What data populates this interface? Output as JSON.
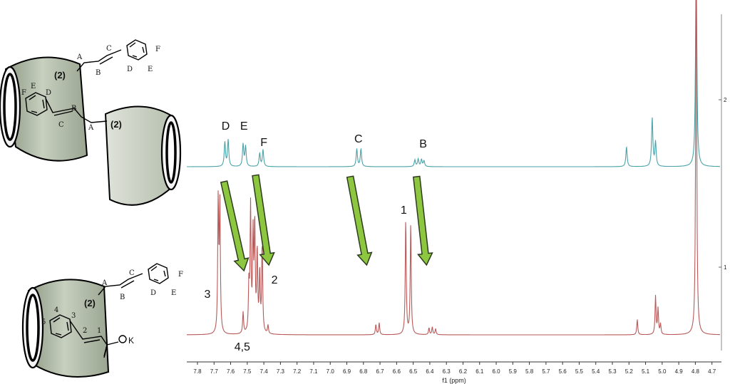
{
  "chart_data": {
    "type": "line",
    "x_axis": {
      "label": "f1 (ppm)",
      "ticks": [
        "7.8",
        "7.7",
        "7.6",
        "7.5",
        "7.4",
        "7.3",
        "7.2",
        "7.1",
        "7.0",
        "6.9",
        "6.8",
        "6.7",
        "6.6",
        "6.5",
        "6.4",
        "6.3",
        "6.2",
        "6.1",
        "6.0",
        "5.9",
        "5.8",
        "5.7",
        "5.6",
        "5.5",
        "5.4",
        "5.3",
        "5.2",
        "5.1",
        "5.0",
        "4.9",
        "4.8",
        "4.7"
      ],
      "range": [
        7.83,
        4.66
      ],
      "reversed": true
    },
    "y_axis_right": {
      "ticks": [
        "2",
        "1"
      ]
    },
    "series": [
      {
        "color": "#4aa3a8",
        "peak_labels": [
          {
            "text": "D",
            "ppm": 7.63
          },
          {
            "text": "E",
            "ppm": 7.52
          },
          {
            "text": "F",
            "ppm": 7.4
          },
          {
            "text": "C",
            "ppm": 6.83
          },
          {
            "text": "B",
            "ppm": 6.44
          }
        ],
        "peaks": [
          {
            "ppm": 7.635,
            "h": 0.55
          },
          {
            "ppm": 7.615,
            "h": 0.6
          },
          {
            "ppm": 7.525,
            "h": 0.5
          },
          {
            "ppm": 7.51,
            "h": 0.45
          },
          {
            "ppm": 7.425,
            "h": 0.3
          },
          {
            "ppm": 7.405,
            "h": 0.38
          },
          {
            "ppm": 6.84,
            "h": 0.4
          },
          {
            "ppm": 6.815,
            "h": 0.4
          },
          {
            "ppm": 6.49,
            "h": 0.15
          },
          {
            "ppm": 6.47,
            "h": 0.17
          },
          {
            "ppm": 6.45,
            "h": 0.16
          },
          {
            "ppm": 6.435,
            "h": 0.13
          },
          {
            "ppm": 5.215,
            "h": 0.45
          },
          {
            "ppm": 5.06,
            "h": 1.1
          },
          {
            "ppm": 5.04,
            "h": 0.55
          },
          {
            "ppm": 4.795,
            "h": 5.0
          }
        ]
      },
      {
        "color": "#b85a5a",
        "peak_labels": [
          {
            "text": "3",
            "ppm": 7.68
          },
          {
            "text": "4,5",
            "ppm": 7.53
          },
          {
            "text": "2",
            "ppm": 7.37
          },
          {
            "text": "1",
            "ppm": 6.54
          }
        ],
        "peaks": [
          {
            "ppm": 7.675,
            "h": 1.55
          },
          {
            "ppm": 7.665,
            "h": 1.5
          },
          {
            "ppm": 7.525,
            "h": 0.25
          },
          {
            "ppm": 7.49,
            "h": 0.55
          },
          {
            "ppm": 7.48,
            "h": 1.45
          },
          {
            "ppm": 7.465,
            "h": 1.1
          },
          {
            "ppm": 7.455,
            "h": 1.25
          },
          {
            "ppm": 7.44,
            "h": 0.95
          },
          {
            "ppm": 7.425,
            "h": 0.7
          },
          {
            "ppm": 7.41,
            "h": 1.05
          },
          {
            "ppm": 7.375,
            "h": 0.1
          },
          {
            "ppm": 6.725,
            "h": 0.12
          },
          {
            "ppm": 6.705,
            "h": 0.14
          },
          {
            "ppm": 6.545,
            "h": 1.35
          },
          {
            "ppm": 6.515,
            "h": 1.3
          },
          {
            "ppm": 6.405,
            "h": 0.08
          },
          {
            "ppm": 6.385,
            "h": 0.09
          },
          {
            "ppm": 6.365,
            "h": 0.07
          },
          {
            "ppm": 5.15,
            "h": 0.18
          },
          {
            "ppm": 5.04,
            "h": 0.45
          },
          {
            "ppm": 5.025,
            "h": 0.3
          },
          {
            "ppm": 5.01,
            "h": 0.12
          },
          {
            "ppm": 4.795,
            "h": 5.0
          }
        ]
      }
    ],
    "shift_arrows_color": "#8dc63f"
  },
  "molecules": {
    "top": {
      "chain_labels": [
        "A",
        "B",
        "C",
        "D",
        "E",
        "F"
      ],
      "inner_labels": [
        "F",
        "E",
        "D",
        "B",
        "C",
        "A"
      ],
      "linker_labels": [
        "(2)",
        "(2)"
      ]
    },
    "bottom": {
      "chain_labels": [
        "A",
        "B",
        "C",
        "D",
        "E",
        "F"
      ],
      "inner_labels": [
        "5",
        "4",
        "3",
        "2",
        "1"
      ],
      "linker_label": "(2)",
      "counter_ion": "K"
    }
  }
}
